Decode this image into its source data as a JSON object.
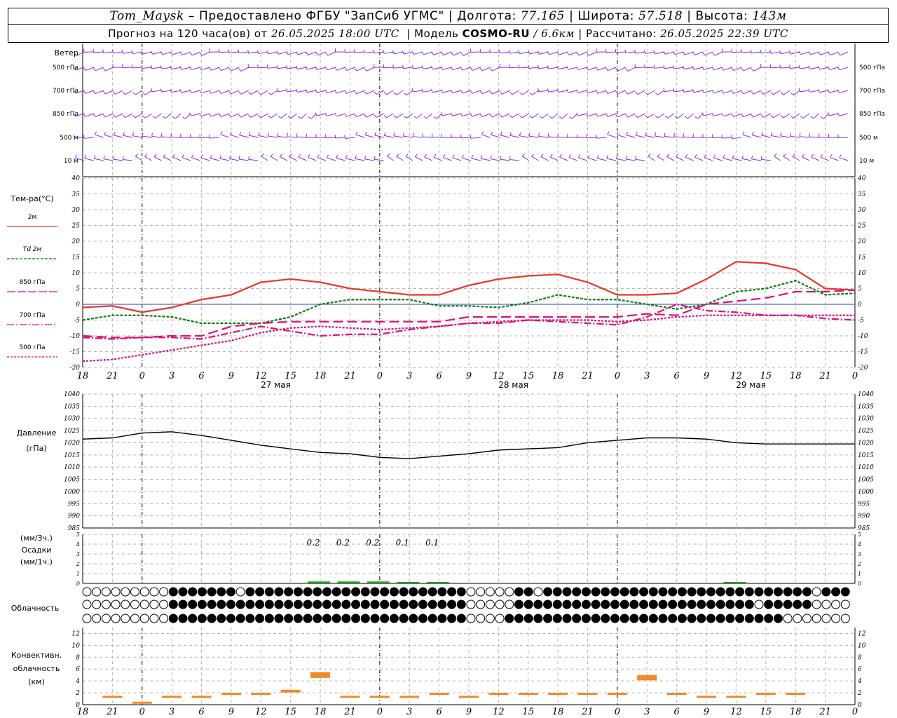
{
  "header": {
    "station": "Tom_Maysk",
    "provider": "– Предоставлено ФГБУ \"ЗапСиб УГМС\"",
    "lon_label": "Долгота:",
    "lon": "77.165",
    "lat_label": "Широта:",
    "lat": "57.518",
    "alt_label": "Высота:",
    "alt": "143м",
    "forecast_label": "Прогноз на 120 часа(ов) от",
    "forecast_from": "26.05.2025 18:00 UTC",
    "model_label": "Модель",
    "model": "COSMO-RU",
    "resolution": "/ 6.6км",
    "calc_label": "Рассчитано:",
    "calc": "26.05.2025 22:39 UTC"
  },
  "labels": {
    "wind": "Ветер",
    "wind_levels": [
      "500 гПа",
      "700 гПа",
      "850 гПа",
      "500 м",
      "10  м"
    ],
    "temp_title": "Тем-ра(°С)",
    "temp_legend": [
      "2м",
      "Td  2м",
      "850 гПа",
      "700 гПа",
      "500 гПа"
    ],
    "pressure_title": "Давление",
    "pressure_unit": "(гПа)",
    "precip_lines": [
      "(мм/3ч.)",
      "Осадки",
      "(мм/1ч.)"
    ],
    "cloud_title": "Облачность",
    "conv_lines": [
      "Конвективн.",
      "облачность",
      "(км)"
    ]
  },
  "colors": {
    "wind": "#8a2be2",
    "t2m": "#e8382a",
    "td2m": "#0a7d0a",
    "p850": "#dd1177",
    "p700": "#dd1177",
    "p500": "#dd1177",
    "pressure": "#000000",
    "precip": "#22bb22",
    "conv": "#f08a2a",
    "grid": "#b4b4b4",
    "zero": "#2040c0"
  },
  "chart_data": [
    {
      "type": "line",
      "panel": "temperature",
      "x_ticks": [
        "18",
        "21",
        "0",
        "3",
        "6",
        "9",
        "12",
        "15",
        "18",
        "21",
        "0",
        "3",
        "6",
        "9",
        "12",
        "15",
        "18",
        "21",
        "0",
        "3",
        "6",
        "9",
        "12",
        "15",
        "18",
        "21",
        "0"
      ],
      "day_labels": [
        "27 мая",
        "28 мая",
        "29 мая"
      ],
      "ylim": [
        -20,
        40
      ],
      "yticks": [
        -20,
        -15,
        -10,
        -5,
        0,
        5,
        10,
        15,
        20,
        25,
        30,
        35,
        40
      ],
      "x_hours": [
        0,
        3,
        6,
        9,
        12,
        15,
        18,
        21,
        24,
        27,
        30,
        33,
        36,
        39,
        42,
        45,
        48,
        51,
        54,
        57,
        60,
        63,
        66,
        69,
        72,
        75,
        78
      ],
      "series": [
        {
          "name": "2м",
          "values": [
            -1,
            -0.5,
            -2.5,
            -1,
            1.5,
            3,
            7,
            8,
            7,
            5,
            4,
            3,
            3,
            6,
            8,
            9,
            9.5,
            7,
            3,
            3,
            3.5,
            8,
            13.5,
            13,
            11,
            5,
            4.5
          ]
        },
        {
          "name": "Td  2м",
          "values": [
            -5,
            -3.5,
            -3.5,
            -4,
            -6,
            -6,
            -6,
            -4,
            0,
            1.5,
            1.5,
            1.5,
            -0.5,
            -0.5,
            -1,
            0.5,
            3,
            1.5,
            1.5,
            0,
            -1.5,
            0,
            4,
            5,
            7.5,
            3,
            3.5
          ]
        },
        {
          "name": "850 гПа",
          "values": [
            -10,
            -10.5,
            -10.5,
            -10,
            -10,
            -7,
            -6,
            -5.5,
            -5.5,
            -5.5,
            -5.5,
            -5.5,
            -5.5,
            -4,
            -4,
            -4,
            -4,
            -4,
            -4,
            -3,
            -3.5,
            0,
            1,
            2,
            4,
            4,
            4.5
          ]
        },
        {
          "name": "700 гПа",
          "values": [
            -10.5,
            -11,
            -10.5,
            -10.5,
            -11,
            -9,
            -7,
            -8.5,
            -10,
            -9.5,
            -9.5,
            -8,
            -7,
            -6,
            -6,
            -5,
            -5.5,
            -6,
            -6.5,
            -4,
            0,
            -2,
            -2.5,
            -3.5,
            -3.5,
            -4.5,
            -5
          ]
        },
        {
          "name": "500 гПа",
          "values": [
            -18,
            -17.5,
            -16,
            -14.5,
            -13,
            -11.5,
            -9,
            -7.5,
            -7,
            -7.5,
            -8,
            -7.5,
            -7,
            -6,
            -5.5,
            -5,
            -5,
            -5,
            -5.5,
            -5,
            -4,
            -3.5,
            -3.5,
            -3.5,
            -3.5,
            -3.5,
            -3.5
          ]
        }
      ]
    },
    {
      "type": "line",
      "panel": "pressure",
      "ylim": [
        985,
        1040
      ],
      "yticks": [
        985,
        990,
        995,
        1000,
        1005,
        1010,
        1015,
        1020,
        1025,
        1030,
        1035,
        1040
      ],
      "series": [
        {
          "name": "Давление",
          "values": [
            1021.5,
            1022,
            1024,
            1024.5,
            1023,
            1021,
            1019,
            1017.5,
            1016,
            1015.5,
            1014,
            1013.5,
            1014.5,
            1015.5,
            1017,
            1017.5,
            1018,
            1020,
            1021,
            1022,
            1022,
            1021.5,
            1020,
            1019.5,
            1019.5,
            1019.5,
            1019.5
          ]
        }
      ]
    },
    {
      "type": "bar",
      "panel": "precipitation",
      "ylim": [
        0,
        5
      ],
      "yticks": [
        0,
        1,
        2,
        3,
        4,
        5
      ],
      "annotations": [
        "0.2",
        "0.2",
        "0.2",
        "0.1",
        "0.1"
      ],
      "values_3h": [
        0,
        0,
        0,
        0,
        0,
        0,
        0,
        0,
        0.2,
        0.2,
        0.2,
        0.1,
        0.1,
        0,
        0,
        0,
        0,
        0,
        0,
        0,
        0,
        0,
        0.02,
        0,
        0,
        0,
        0
      ]
    },
    {
      "type": "bar",
      "panel": "convective_cloud",
      "ylim": [
        0,
        13
      ],
      "yticks": [
        0,
        2,
        4,
        6,
        8,
        10,
        12
      ],
      "values_km": [
        0,
        1.5,
        0.5,
        1.5,
        1.5,
        2,
        2,
        2.5,
        5.5,
        1.5,
        1.5,
        1.5,
        2,
        1.5,
        2,
        2,
        2,
        2,
        2,
        5,
        2,
        1.5,
        1.5,
        2,
        2,
        0,
        0
      ]
    }
  ]
}
